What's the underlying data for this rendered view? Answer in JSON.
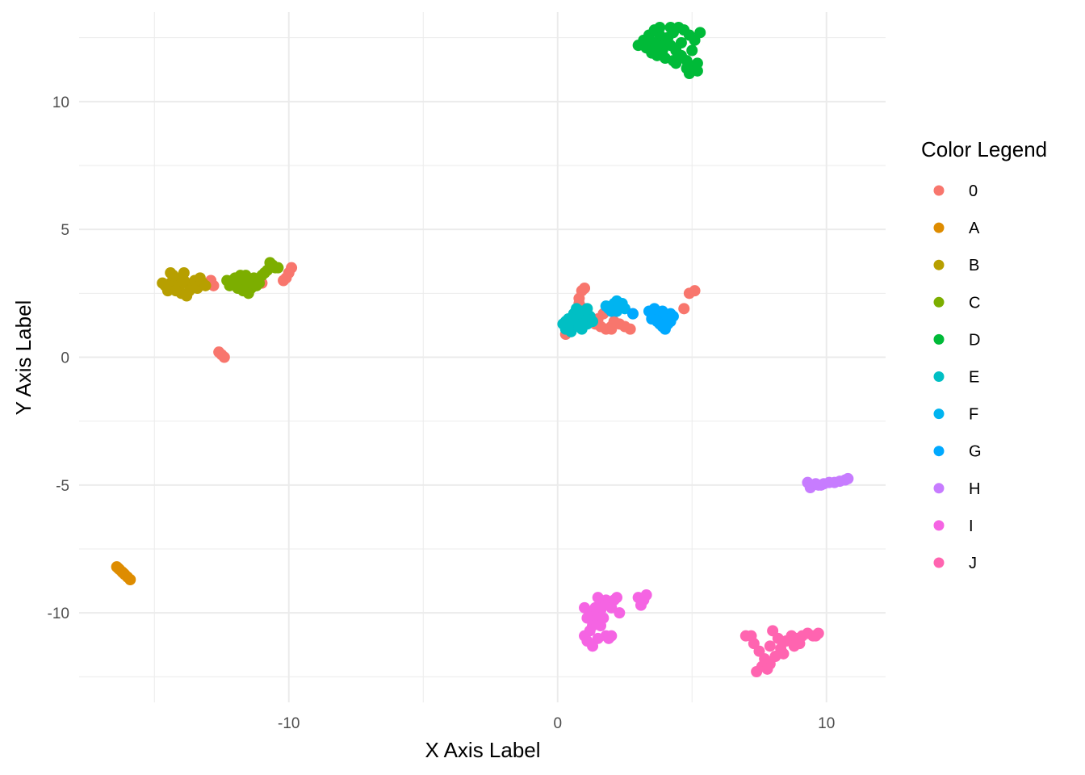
{
  "chart_data": {
    "type": "scatter",
    "xlabel": "X Axis Label",
    "ylabel": "Y Axis Label",
    "xlim": [
      -17.8,
      12.2
    ],
    "ylim": [
      -13.5,
      13.5
    ],
    "x_ticks": [
      -10,
      0,
      10
    ],
    "x_tick_labels": [
      "-10",
      "0",
      "10"
    ],
    "y_ticks": [
      -10,
      -5,
      0,
      5,
      10
    ],
    "y_tick_labels": [
      "-10",
      "-5",
      "0",
      "5",
      "10"
    ],
    "grid": true,
    "legend": {
      "title": "Color Legend",
      "position": "right"
    },
    "series": [
      {
        "name": "0",
        "color": "#F8766D",
        "points": [
          [
            0.3,
            0.9
          ],
          [
            0.5,
            1.2
          ],
          [
            0.8,
            2.3
          ],
          [
            0.9,
            2.6
          ],
          [
            1.0,
            2.7
          ],
          [
            0.8,
            2.1
          ],
          [
            1.0,
            1.9
          ],
          [
            1.2,
            1.6
          ],
          [
            1.4,
            1.3
          ],
          [
            1.6,
            1.2
          ],
          [
            1.8,
            1.1
          ],
          [
            2.0,
            1.2
          ],
          [
            2.1,
            1.4
          ],
          [
            2.3,
            1.3
          ],
          [
            2.5,
            1.2
          ],
          [
            2.7,
            1.1
          ],
          [
            2.8,
            1.7
          ],
          [
            1.5,
            1.5
          ],
          [
            1.7,
            1.7
          ],
          [
            2.0,
            1.1
          ],
          [
            4.7,
            1.9
          ],
          [
            4.9,
            2.5
          ],
          [
            5.1,
            2.6
          ],
          [
            -12.5,
            0.1
          ],
          [
            -12.4,
            0.0
          ],
          [
            -12.6,
            0.2
          ],
          [
            -10.2,
            3.0
          ],
          [
            -10.0,
            3.3
          ],
          [
            -9.9,
            3.5
          ],
          [
            -10.1,
            3.1
          ],
          [
            -12.8,
            2.8
          ],
          [
            -12.9,
            3.0
          ],
          [
            -11.0,
            2.9
          ]
        ]
      },
      {
        "name": "A",
        "color": "#DE8C00",
        "points": [
          [
            -16.4,
            -8.2
          ],
          [
            -16.3,
            -8.3
          ],
          [
            -16.2,
            -8.4
          ],
          [
            -16.1,
            -8.5
          ],
          [
            -16.0,
            -8.6
          ],
          [
            -15.9,
            -8.7
          ],
          [
            -16.35,
            -8.25
          ],
          [
            -16.15,
            -8.45
          ]
        ]
      },
      {
        "name": "B",
        "color": "#B79F00",
        "points": [
          [
            -14.6,
            2.8
          ],
          [
            -14.4,
            2.9
          ],
          [
            -14.2,
            3.0
          ],
          [
            -14.0,
            3.1
          ],
          [
            -13.8,
            2.9
          ],
          [
            -13.6,
            2.8
          ],
          [
            -13.4,
            2.7
          ],
          [
            -13.2,
            2.9
          ],
          [
            -14.5,
            2.6
          ],
          [
            -14.3,
            3.2
          ],
          [
            -14.1,
            2.7
          ],
          [
            -13.9,
            3.3
          ],
          [
            -13.7,
            2.6
          ],
          [
            -13.5,
            3.0
          ],
          [
            -14.0,
            2.5
          ],
          [
            -13.8,
            2.4
          ],
          [
            -14.4,
            3.3
          ],
          [
            -13.3,
            3.1
          ],
          [
            -13.1,
            2.8
          ],
          [
            -14.7,
            2.9
          ],
          [
            -13.9,
            3.0
          ],
          [
            -14.2,
            2.6
          ]
        ]
      },
      {
        "name": "C",
        "color": "#7CAE00",
        "points": [
          [
            -12.2,
            2.8
          ],
          [
            -12.0,
            3.1
          ],
          [
            -11.8,
            2.9
          ],
          [
            -11.6,
            3.0
          ],
          [
            -11.4,
            2.7
          ],
          [
            -11.2,
            2.8
          ],
          [
            -11.0,
            3.2
          ],
          [
            -10.8,
            3.4
          ],
          [
            -10.6,
            3.6
          ],
          [
            -10.5,
            3.5
          ],
          [
            -11.5,
            2.5
          ],
          [
            -11.7,
            2.6
          ],
          [
            -12.3,
            3.0
          ],
          [
            -11.9,
            2.7
          ],
          [
            -11.3,
            3.1
          ],
          [
            -10.9,
            3.3
          ],
          [
            -10.7,
            3.7
          ],
          [
            -11.1,
            2.9
          ],
          [
            -11.6,
            3.2
          ],
          [
            -12.1,
            3.0
          ],
          [
            -10.4,
            3.5
          ],
          [
            -11.8,
            3.2
          ]
        ]
      },
      {
        "name": "D",
        "color": "#00BA38",
        "points": [
          [
            3.0,
            12.2
          ],
          [
            3.2,
            12.4
          ],
          [
            3.4,
            12.6
          ],
          [
            3.6,
            12.8
          ],
          [
            3.8,
            12.6
          ],
          [
            4.0,
            12.4
          ],
          [
            4.2,
            12.2
          ],
          [
            4.4,
            12.0
          ],
          [
            4.6,
            11.8
          ],
          [
            4.8,
            11.6
          ],
          [
            5.0,
            11.4
          ],
          [
            5.2,
            11.2
          ],
          [
            3.3,
            12.1
          ],
          [
            3.5,
            11.9
          ],
          [
            3.7,
            11.8
          ],
          [
            3.9,
            12.0
          ],
          [
            4.1,
            12.5
          ],
          [
            4.3,
            12.7
          ],
          [
            4.5,
            12.9
          ],
          [
            4.7,
            12.8
          ],
          [
            4.9,
            12.6
          ],
          [
            5.1,
            12.4
          ],
          [
            3.6,
            12.3
          ],
          [
            4.0,
            11.7
          ],
          [
            4.4,
            11.5
          ],
          [
            4.8,
            11.3
          ],
          [
            5.2,
            11.5
          ],
          [
            3.8,
            12.9
          ],
          [
            4.2,
            12.9
          ],
          [
            4.6,
            12.3
          ],
          [
            5.0,
            12.0
          ],
          [
            3.4,
            12.4
          ],
          [
            4.3,
            11.6
          ],
          [
            4.9,
            11.1
          ],
          [
            5.3,
            12.7
          ],
          [
            3.7,
            12.2
          ]
        ]
      },
      {
        "name": "E",
        "color": "#00BFC4",
        "points": [
          [
            0.2,
            1.3
          ],
          [
            0.3,
            1.1
          ],
          [
            0.4,
            1.5
          ],
          [
            0.5,
            1.2
          ],
          [
            0.6,
            1.7
          ],
          [
            0.7,
            1.4
          ],
          [
            0.8,
            1.2
          ],
          [
            0.9,
            1.8
          ],
          [
            1.0,
            1.5
          ],
          [
            1.1,
            1.3
          ],
          [
            1.2,
            1.6
          ],
          [
            0.5,
            1.0
          ],
          [
            0.7,
            1.9
          ],
          [
            0.9,
            1.1
          ],
          [
            1.0,
            1.7
          ],
          [
            0.6,
            1.3
          ],
          [
            0.8,
            1.5
          ],
          [
            1.3,
            1.4
          ],
          [
            0.4,
            1.2
          ],
          [
            1.1,
            1.9
          ],
          [
            0.3,
            1.4
          ],
          [
            0.9,
            1.3
          ]
        ]
      },
      {
        "name": "F",
        "color": "#00B4F0",
        "points": [
          [
            1.9,
            1.9
          ],
          [
            2.1,
            2.1
          ],
          [
            2.3,
            2.0
          ],
          [
            2.5,
            1.9
          ],
          [
            2.0,
            1.8
          ],
          [
            2.2,
            2.2
          ],
          [
            1.8,
            2.0
          ],
          [
            2.4,
            2.1
          ],
          [
            2.2,
            1.8
          ]
        ]
      },
      {
        "name": "G",
        "color": "#00A9FF",
        "points": [
          [
            3.4,
            1.8
          ],
          [
            3.6,
            1.7
          ],
          [
            3.8,
            1.6
          ],
          [
            4.0,
            1.5
          ],
          [
            4.2,
            1.7
          ],
          [
            3.7,
            1.4
          ],
          [
            3.9,
            1.2
          ],
          [
            4.1,
            1.3
          ],
          [
            4.3,
            1.6
          ],
          [
            3.5,
            1.5
          ],
          [
            3.9,
            1.8
          ],
          [
            4.0,
            1.1
          ],
          [
            3.8,
            1.3
          ],
          [
            4.2,
            1.4
          ],
          [
            2.8,
            1.7
          ],
          [
            3.6,
            1.9
          ]
        ]
      },
      {
        "name": "H",
        "color": "#C77CFF",
        "points": [
          [
            9.3,
            -4.9
          ],
          [
            9.5,
            -5.0
          ],
          [
            9.7,
            -5.0
          ],
          [
            9.9,
            -4.95
          ],
          [
            10.1,
            -4.9
          ],
          [
            10.3,
            -4.9
          ],
          [
            10.5,
            -4.85
          ],
          [
            10.7,
            -4.8
          ],
          [
            10.8,
            -4.75
          ],
          [
            9.4,
            -5.1
          ],
          [
            9.6,
            -4.95
          ],
          [
            9.8,
            -5.0
          ]
        ]
      },
      {
        "name": "I",
        "color": "#F564E3",
        "points": [
          [
            1.0,
            -10.9
          ],
          [
            1.1,
            -11.1
          ],
          [
            1.2,
            -10.7
          ],
          [
            1.3,
            -10.5
          ],
          [
            1.4,
            -10.3
          ],
          [
            1.5,
            -10.1
          ],
          [
            1.6,
            -9.9
          ],
          [
            1.7,
            -9.7
          ],
          [
            1.8,
            -9.5
          ],
          [
            1.9,
            -9.6
          ],
          [
            2.0,
            -9.8
          ],
          [
            2.1,
            -9.5
          ],
          [
            2.2,
            -9.4
          ],
          [
            1.2,
            -10.0
          ],
          [
            1.4,
            -9.8
          ],
          [
            1.6,
            -10.5
          ],
          [
            1.8,
            -10.9
          ],
          [
            2.0,
            -10.9
          ],
          [
            1.3,
            -11.3
          ],
          [
            1.1,
            -10.2
          ],
          [
            1.5,
            -9.4
          ],
          [
            1.7,
            -10.2
          ],
          [
            3.0,
            -9.4
          ],
          [
            3.2,
            -9.5
          ],
          [
            3.3,
            -9.3
          ],
          [
            3.1,
            -9.7
          ],
          [
            1.9,
            -11.0
          ],
          [
            2.3,
            -10.0
          ],
          [
            1.0,
            -9.8
          ],
          [
            1.5,
            -11.0
          ]
        ]
      },
      {
        "name": "J",
        "color": "#FF64B0",
        "points": [
          [
            7.0,
            -10.9
          ],
          [
            7.3,
            -11.2
          ],
          [
            7.5,
            -11.5
          ],
          [
            7.7,
            -11.8
          ],
          [
            7.9,
            -12.0
          ],
          [
            8.1,
            -11.7
          ],
          [
            8.3,
            -11.4
          ],
          [
            8.5,
            -11.1
          ],
          [
            8.7,
            -10.9
          ],
          [
            8.9,
            -11.0
          ],
          [
            9.1,
            -10.9
          ],
          [
            9.3,
            -10.8
          ],
          [
            9.5,
            -10.9
          ],
          [
            9.7,
            -10.8
          ],
          [
            7.4,
            -12.3
          ],
          [
            7.6,
            -12.1
          ],
          [
            7.8,
            -12.2
          ],
          [
            8.0,
            -10.7
          ],
          [
            8.2,
            -11.0
          ],
          [
            8.4,
            -11.6
          ],
          [
            8.8,
            -11.3
          ],
          [
            9.0,
            -11.2
          ],
          [
            9.6,
            -10.9
          ],
          [
            7.2,
            -10.9
          ],
          [
            7.9,
            -11.3
          ]
        ]
      }
    ]
  }
}
